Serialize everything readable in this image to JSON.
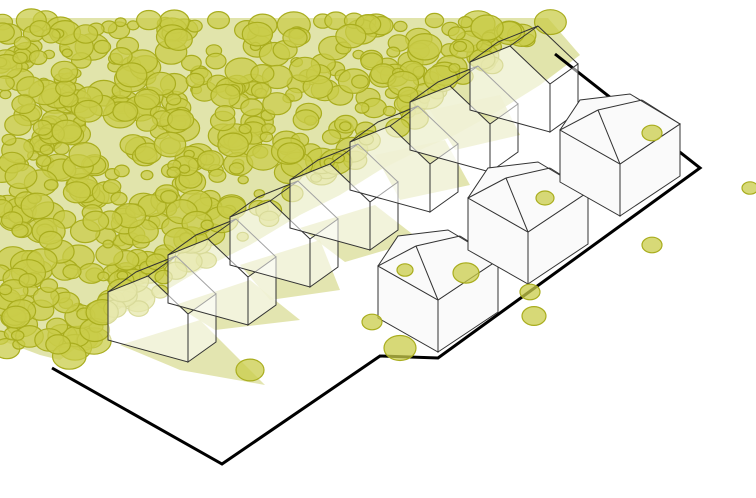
{
  "diagram": {
    "kind": "axonometric site plan",
    "colors": {
      "background": "#ffffff",
      "vegetation_fill": "#dcdf9c",
      "tree_fill": "#c9cc4a",
      "tree_stroke": "#a9ad1e",
      "building_stroke": "#333333",
      "site_outline": "#000000"
    },
    "small_house_count": 8,
    "large_house_count": 3
  }
}
